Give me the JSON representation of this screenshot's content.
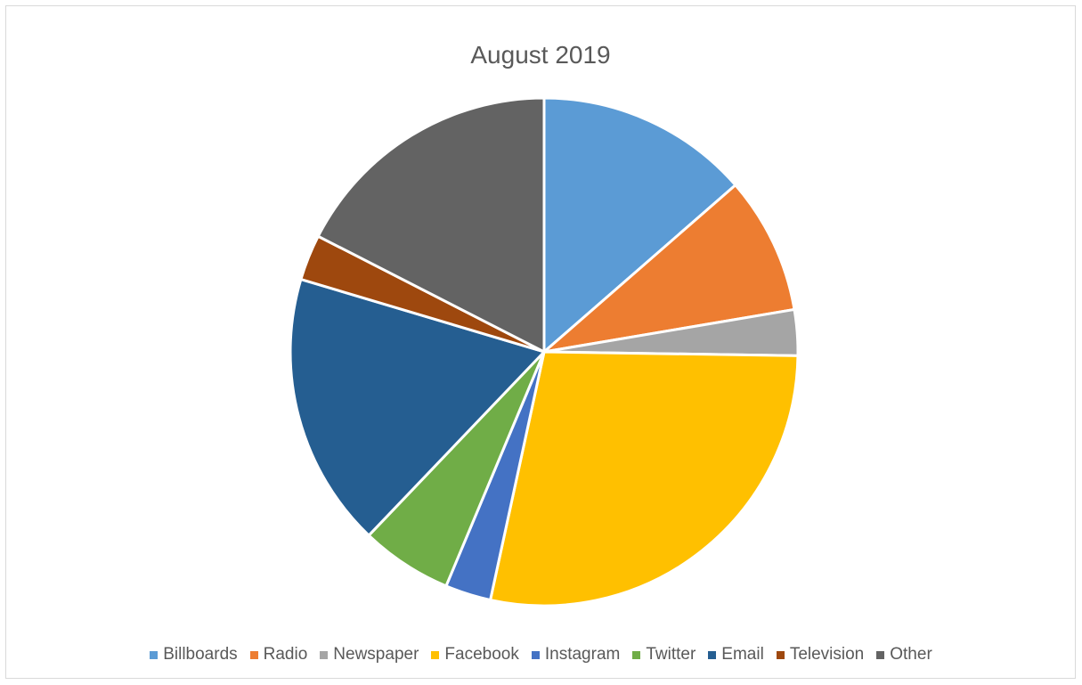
{
  "chart_data": {
    "type": "pie",
    "title": "August 2019",
    "legend_position": "bottom",
    "categories": [
      "Billboards",
      "Radio",
      "Newspaper",
      "Facebook",
      "Instagram",
      "Twitter",
      "Email",
      "Television",
      "Other"
    ],
    "values": [
      14,
      9,
      3,
      29,
      3,
      6,
      18,
      3,
      18
    ],
    "colors": [
      "#5B9BD5",
      "#ED7D31",
      "#A5A5A5",
      "#FFC000",
      "#4472C4",
      "#70AD47",
      "#255E91",
      "#9E480E",
      "#636363"
    ],
    "start_angle_deg": 0,
    "direction": "clockwise"
  }
}
